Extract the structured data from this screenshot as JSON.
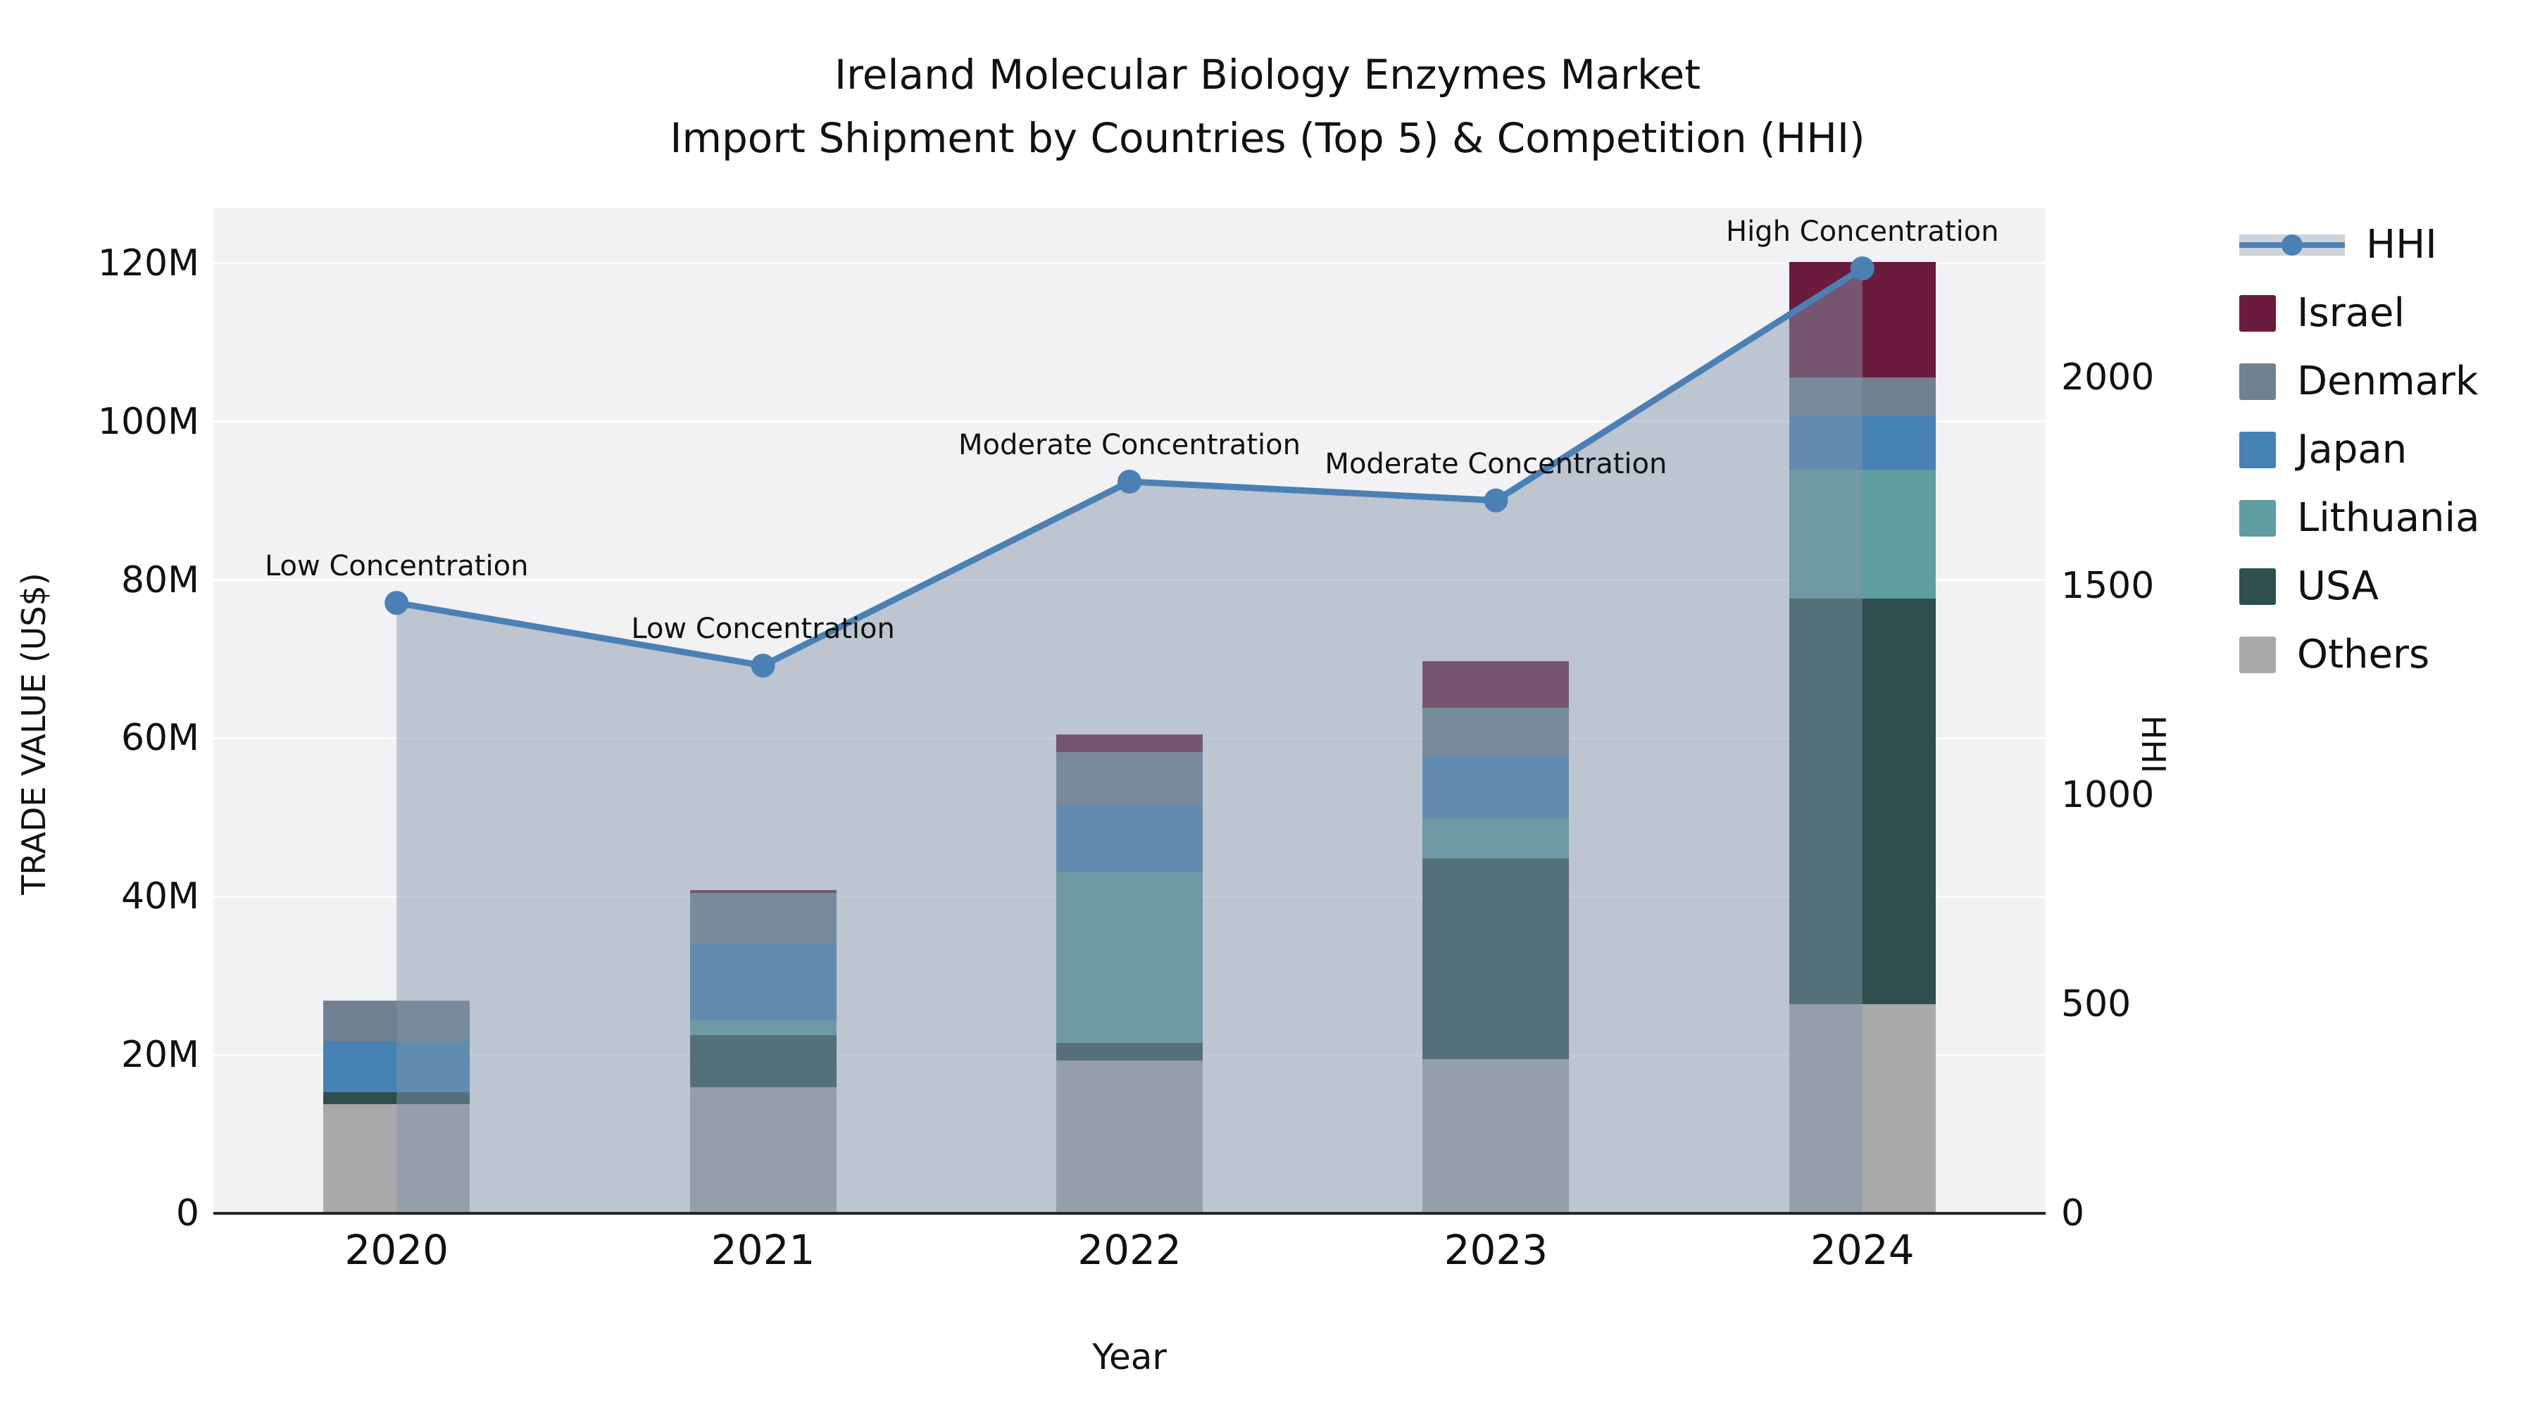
{
  "title": {
    "line1": "Ireland Molecular Biology Enzymes Market",
    "line2": "Import Shipment by Countries (Top 5) & Competition (HHI)"
  },
  "axes": {
    "y_left": {
      "label": "TRADE VALUE (US$)",
      "tick_labels": [
        "0",
        "20M",
        "40M",
        "60M",
        "80M",
        "100M",
        "120M"
      ],
      "tick_values": [
        0,
        20,
        40,
        60,
        80,
        100,
        120
      ],
      "units": "millions US$"
    },
    "y_right": {
      "label": "HHI",
      "tick_labels": [
        "0",
        "500",
        "1000",
        "1500",
        "2000"
      ],
      "tick_values": [
        0,
        500,
        1000,
        1500,
        2000
      ]
    },
    "x": {
      "label": "Year",
      "tick_labels": [
        "2020",
        "2021",
        "2022",
        "2023",
        "2024"
      ]
    }
  },
  "legend": {
    "items": [
      {
        "label": "HHI",
        "type": "line",
        "color": "#4a80b4"
      },
      {
        "label": "Israel",
        "type": "swatch",
        "color": "#6b1b3d"
      },
      {
        "label": "Denmark",
        "type": "swatch",
        "color": "#708090"
      },
      {
        "label": "Japan",
        "type": "swatch",
        "color": "#4682b4"
      },
      {
        "label": "Lithuania",
        "type": "swatch",
        "color": "#5f9ea0"
      },
      {
        "label": "USA",
        "type": "swatch",
        "color": "#2f4f4f"
      },
      {
        "label": "Others",
        "type": "swatch",
        "color": "#a9a9a9"
      }
    ]
  },
  "chart_data": {
    "type": "bar",
    "subtype": "stacked-bars-with-line-overlay",
    "title": "Ireland Molecular Biology Enzymes Market — Import Shipment by Countries (Top 5) & Competition (HHI)",
    "categories": [
      "2020",
      "2021",
      "2022",
      "2023",
      "2024"
    ],
    "stack_order_bottom_to_top": [
      "Others",
      "USA",
      "Lithuania",
      "Japan",
      "Denmark",
      "Israel"
    ],
    "series": [
      {
        "name": "Others",
        "color": "#a9a9a9",
        "values": [
          13.8,
          15.9,
          19.3,
          19.5,
          26.4
        ]
      },
      {
        "name": "USA",
        "color": "#2f4f4f",
        "values": [
          1.5,
          6.6,
          2.2,
          25.3,
          51.3
        ]
      },
      {
        "name": "Lithuania",
        "color": "#5f9ea0",
        "values": [
          0,
          1.9,
          21.6,
          5.1,
          16.2
        ]
      },
      {
        "name": "Japan",
        "color": "#4682b4",
        "values": [
          6.4,
          9.6,
          8.4,
          7.9,
          6.9
        ]
      },
      {
        "name": "Denmark",
        "color": "#708090",
        "values": [
          5.2,
          6.5,
          6.8,
          6.1,
          4.8
        ]
      },
      {
        "name": "Israel",
        "color": "#6b1b3d",
        "values": [
          0,
          0.3,
          2.2,
          5.8,
          14.6
        ]
      }
    ],
    "bar_totals_millions": [
      26.9,
      40.8,
      60.5,
      69.7,
      120.2
    ],
    "line_series": {
      "name": "HHI",
      "axis": "right",
      "color": "#4a80b4",
      "area_fill": "rgba(130,148,170,0.48)",
      "values": [
        1460,
        1310,
        1750,
        1705,
        2260
      ]
    },
    "annotations": [
      {
        "category": "2020",
        "text": "Low Concentration"
      },
      {
        "category": "2021",
        "text": "Low Concentration"
      },
      {
        "category": "2022",
        "text": "Moderate Concentration"
      },
      {
        "category": "2023",
        "text": "Moderate Concentration"
      },
      {
        "category": "2024",
        "text": "High Concentration"
      }
    ],
    "ylabel_left": "TRADE VALUE (US$)",
    "ylabel_right": "HHI",
    "xlabel": "Year",
    "ylim_left_millions": [
      0,
      127
    ],
    "ylim_right": [
      0,
      2404
    ],
    "grid": "horizontal-major-only",
    "plot_background": "#f2f2f4",
    "legend_position": "right-outside"
  }
}
